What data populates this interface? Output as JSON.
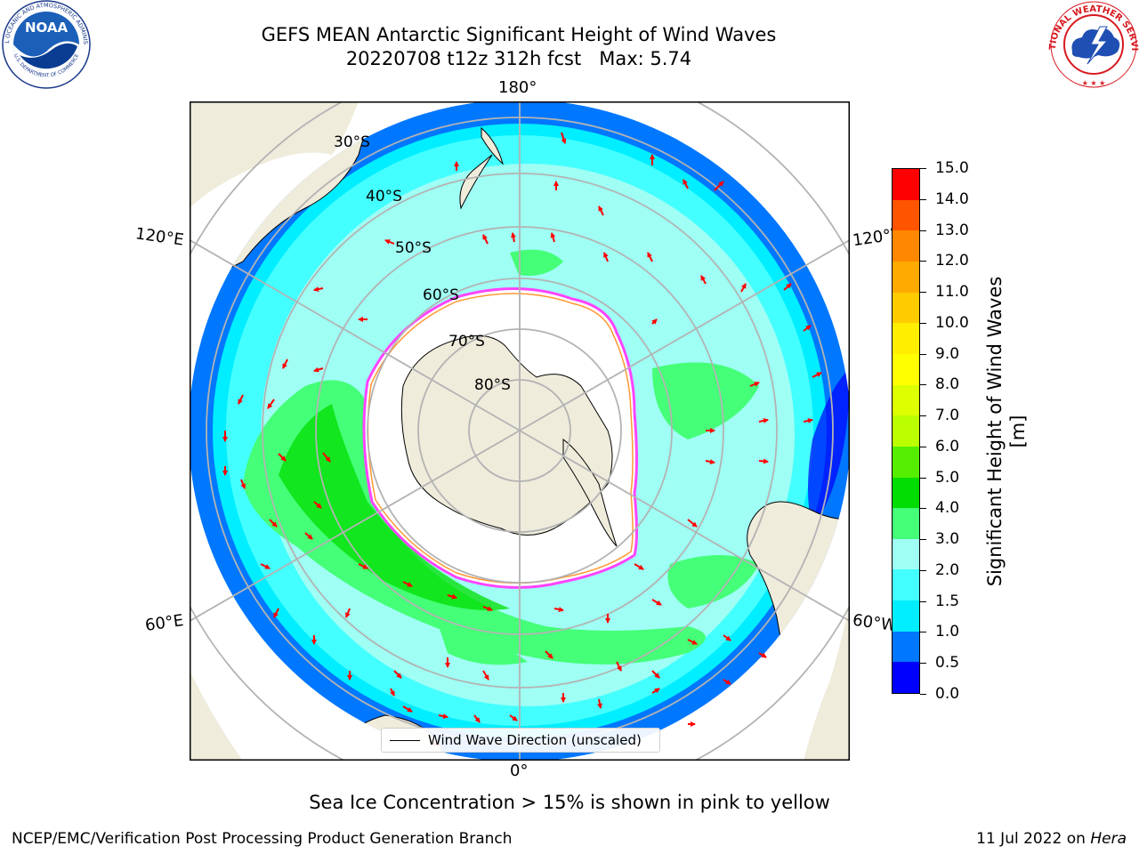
{
  "title": {
    "line1": "GEFS MEAN Antarctic Significant Height of Wind Waves",
    "line2": "20220708 t12z 312h fcst   Max: 5.74"
  },
  "logos": {
    "noaa": {
      "label": "NOAA",
      "ring_text": "NATIONAL OCEANIC AND ATMOSPHERIC ADMINISTRATION",
      "ring_text_bottom": "U.S. DEPARTMENT OF COMMERCE"
    },
    "nws": {
      "ring_text": "NATIONAL WEATHER SERVICE"
    }
  },
  "map": {
    "projection": "south polar stereographic",
    "longitude_labels": {
      "top": "180°",
      "bottom": "0°",
      "upper_left": "120°E",
      "upper_right": "120°W",
      "lower_left": "60°E",
      "lower_right": "60°W"
    },
    "latitude_labels": [
      "30°S",
      "40°S",
      "50°S",
      "60°S",
      "70°S",
      "80°S"
    ],
    "land_color": "#efecdc",
    "ice_free_color": "#ffffff",
    "ice_edge_colors": [
      "#ff44ff",
      "#ff9933",
      "#ffdd33"
    ],
    "arrow_color": "#ff0000",
    "gridline_color": "#b3b3b3"
  },
  "legend": {
    "label": "Wind Wave Direction (unscaled)"
  },
  "colorbar": {
    "label": "Significant Height of Wind Waves [m]",
    "ticks": [
      "0.0",
      "0.5",
      "1.0",
      "1.5",
      "2.0",
      "3.0",
      "4.0",
      "5.0",
      "6.0",
      "7.0",
      "8.0",
      "9.0",
      "10.0",
      "11.0",
      "12.0",
      "13.0",
      "14.0",
      "15.0"
    ],
    "colors": [
      "#0000ff",
      "#0077ff",
      "#00eeff",
      "#44ffff",
      "#9ffff5",
      "#44ff77",
      "#00dd00",
      "#55ee00",
      "#bbff00",
      "#ddff00",
      "#ffff00",
      "#ffee00",
      "#ffcc00",
      "#ffaa00",
      "#ff8800",
      "#ff5500",
      "#ff0000"
    ]
  },
  "note": "Sea Ice Concentration > 15% is shown in pink to yellow",
  "footer": {
    "left": "NCEP/EMC/Verification Post Processing Product Generation Branch",
    "right_date": "11 Jul 2022 on ",
    "right_machine": "Hera"
  }
}
